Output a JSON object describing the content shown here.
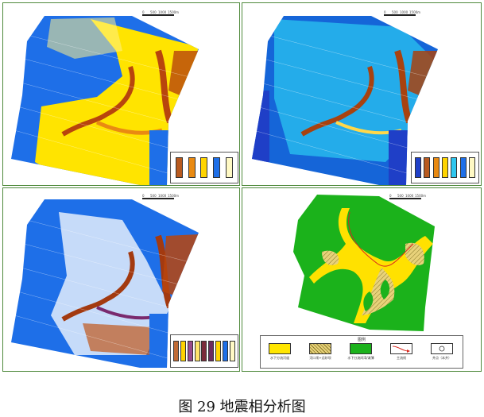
{
  "figure_caption": "图 29  地震相分析图",
  "panels": [
    {
      "id": "panel-1",
      "scale_labels": [
        "0",
        "500",
        "1000",
        "1500m"
      ],
      "colors": {
        "background_facies": "#1e6fe8",
        "bright_facies": "#ffe400",
        "dark_facies": "#b8450d",
        "mid_facies": "#e98a12"
      },
      "legend_swatches": [
        "#b85a1f",
        "#e98a12",
        "#ffd400",
        "#1e6fe8",
        "#fff9c4"
      ]
    },
    {
      "id": "panel-2",
      "scale_labels": [
        "0",
        "500",
        "1000",
        "1500m"
      ],
      "colors": {
        "background_facies": "#1565d8",
        "cyan_facies": "#29c4f0",
        "dark_facies": "#a8420f",
        "bright_facies": "#ffd84a",
        "edge_facies": "#1f3fc7"
      },
      "legend_swatches": [
        "#1f3fc7",
        "#b85a1f",
        "#e98a12",
        "#ffd400",
        "#2fc6ef",
        "#1e6fe8",
        "#fff9c4"
      ]
    },
    {
      "id": "panel-3",
      "scale_labels": [
        "0",
        "500",
        "1000",
        "1500m"
      ],
      "colors": {
        "background_facies": "#1e6fe8",
        "white_facies": "#ffffff",
        "dark_facies": "#a33a10",
        "purple_facies": "#7a2a6e"
      },
      "legend_swatches": [
        "#c06a34",
        "#ffd400",
        "#9a4a8a",
        "#ffe46b",
        "#7a2a3a",
        "#6b2a5e",
        "#ffd400",
        "#1e6fe8",
        "#fff9c4"
      ]
    },
    {
      "id": "panel-4",
      "scale_labels": [
        "0",
        "500",
        "1000",
        "1500m"
      ],
      "colors": {
        "plain_facies": "#1bb21b",
        "channel_facies": "#ffe100",
        "bar_facies": "#c8b96b"
      },
      "legend": {
        "title": "图例",
        "items": [
          {
            "label": "水下分流河道",
            "color": "#ffe600",
            "pattern": "solid"
          },
          {
            "label": "河口坝+远砂坝",
            "color": "#e8d27a",
            "pattern": "hatch"
          },
          {
            "label": "水下分流间湾/滩薄",
            "color": "#1bb21b",
            "pattern": "solid"
          },
          {
            "label": "主流线",
            "color": "#ffffff",
            "pattern": "arrow"
          },
          {
            "label": "井点（本井）",
            "color": "#ffffff",
            "pattern": "circle"
          }
        ]
      }
    }
  ]
}
